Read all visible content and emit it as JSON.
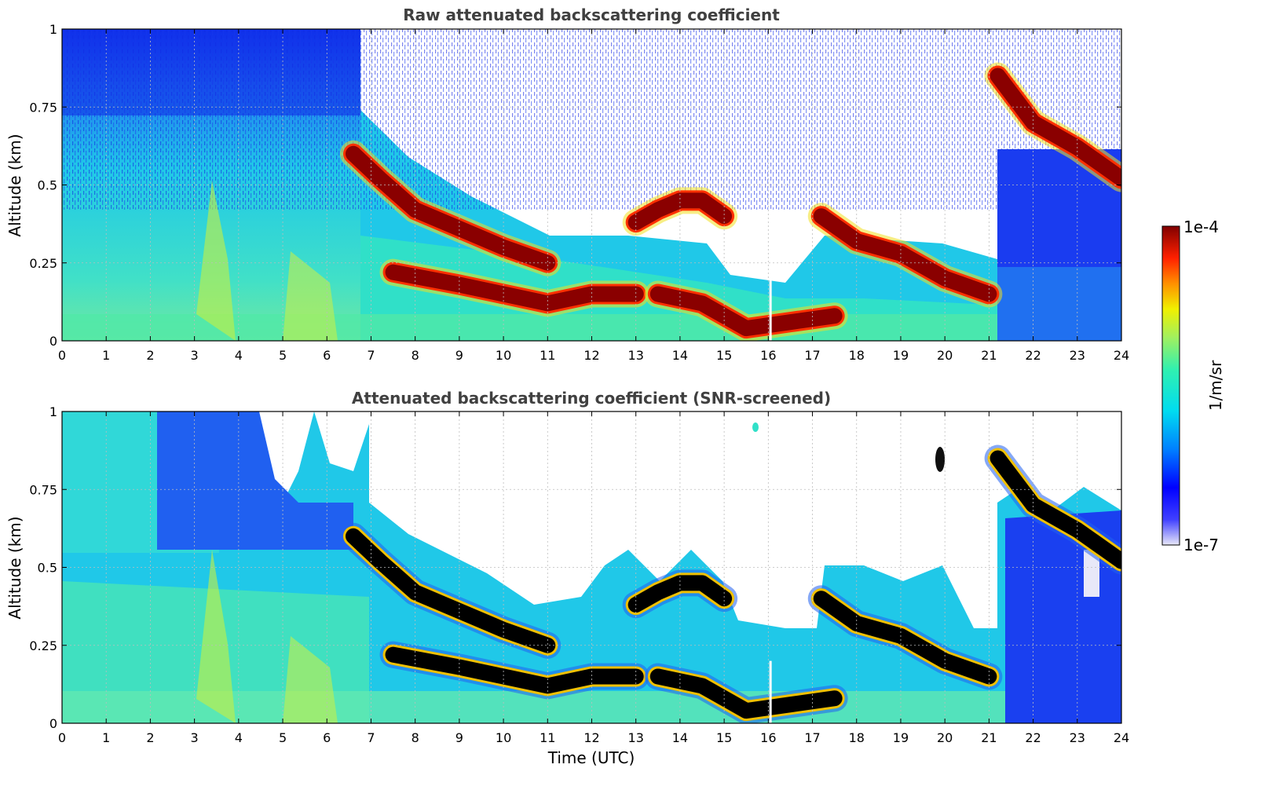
{
  "chart_data": [
    {
      "type": "heatmap",
      "title": "Raw attenuated backscattering coefficient",
      "xlabel": "",
      "ylabel": "Altitude (km)",
      "xlim": [
        0,
        24
      ],
      "ylim": [
        0,
        1
      ],
      "x_ticks": [
        "0",
        "1",
        "2",
        "3",
        "4",
        "5",
        "6",
        "7",
        "8",
        "9",
        "10",
        "11",
        "12",
        "13",
        "14",
        "15",
        "16",
        "17",
        "18",
        "19",
        "20",
        "21",
        "22",
        "23",
        "24"
      ],
      "y_ticks": [
        "0",
        "0.25",
        "0.5",
        "0.75",
        "1"
      ],
      "grid": true,
      "colormap": "jet",
      "color_range": [
        "1e-7",
        "1e-4"
      ],
      "layers": [
        {
          "name": "cloud-layer-upper",
          "time_utc": [
            6.6,
            7.2,
            8,
            9,
            10,
            11
          ],
          "altitude_km": [
            0.6,
            0.52,
            0.42,
            0.36,
            0.3,
            0.25
          ]
        },
        {
          "name": "cloud-layer-lower",
          "time_utc": [
            7.5,
            9,
            10,
            11,
            12,
            13
          ],
          "altitude_km": [
            0.22,
            0.18,
            0.15,
            0.12,
            0.15,
            0.15
          ]
        },
        {
          "name": "cloud-layer-mid",
          "time_utc": [
            13,
            13.5,
            14,
            14.5,
            15
          ],
          "altitude_km": [
            0.38,
            0.42,
            0.45,
            0.45,
            0.4
          ]
        },
        {
          "name": "cloud-layer-low",
          "time_utc": [
            13.5,
            14.5,
            15.5,
            16.5,
            17.5
          ],
          "altitude_km": [
            0.15,
            0.12,
            0.04,
            0.06,
            0.08
          ]
        },
        {
          "name": "cloud-layer-evening",
          "time_utc": [
            17.2,
            18,
            19,
            20,
            21
          ],
          "altitude_km": [
            0.4,
            0.32,
            0.28,
            0.2,
            0.15
          ]
        },
        {
          "name": "cloud-layer-night",
          "time_utc": [
            21.2,
            22,
            23,
            24
          ],
          "altitude_km": [
            0.85,
            0.7,
            0.62,
            0.52
          ]
        }
      ]
    },
    {
      "type": "heatmap",
      "title": "Attenuated backscattering coefficient (SNR-screened)",
      "xlabel": "Time (UTC)",
      "ylabel": "Altitude (km)",
      "xlim": [
        0,
        24
      ],
      "ylim": [
        0,
        1
      ],
      "x_ticks": [
        "0",
        "1",
        "2",
        "3",
        "4",
        "5",
        "6",
        "7",
        "8",
        "9",
        "10",
        "11",
        "12",
        "13",
        "14",
        "15",
        "16",
        "17",
        "18",
        "19",
        "20",
        "21",
        "22",
        "23",
        "24"
      ],
      "y_ticks": [
        "0",
        "0.25",
        "0.5",
        "0.75",
        "1"
      ],
      "grid": true,
      "colormap": "jet",
      "color_range": [
        "1e-7",
        "1e-4"
      ],
      "note_colors": {
        "saturated": "#000000",
        "screened": "#ffffff"
      }
    }
  ],
  "colorbar": {
    "max_label": "1e-4",
    "min_label": "1e-7",
    "unit_label": "1/m/sr"
  },
  "colors": {
    "frame": "#000000",
    "grid": "#bdbdbd",
    "title": "#404040"
  }
}
